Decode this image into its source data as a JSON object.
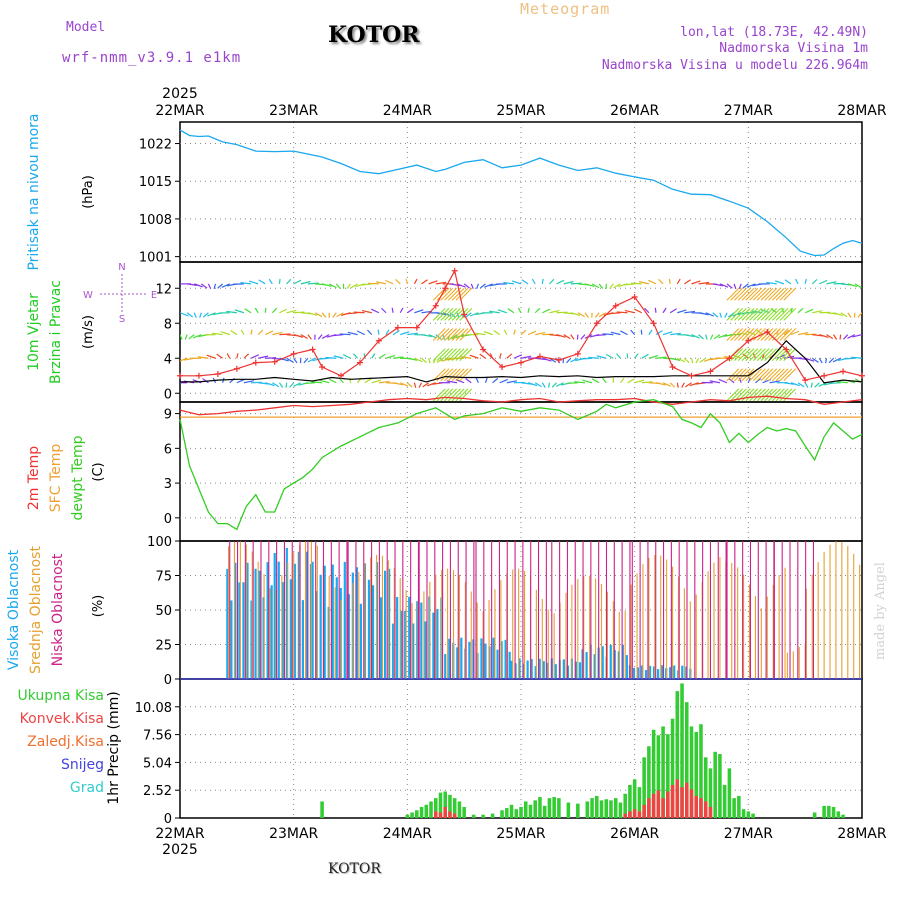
{
  "header": {
    "model_label": "Model",
    "model_name": "wrf-nmm_v3.9.1 e1km",
    "title": "KOTOR",
    "product": "Meteogram",
    "lonlat": "lon,lat (18.73E, 42.49N)",
    "elevation": "Nadmorska Visina 1m",
    "model_elevation": "Nadmorska Visina u modelu 226.964m",
    "footer_city": "KOTOR",
    "credit": "made by Angel"
  },
  "colors": {
    "pressure": "#1aa8ee",
    "wind_label": "#22cc22",
    "temp2m": "#ee3333",
    "sfc_temp": "#f0a030",
    "dewpt": "#33cc22",
    "cloud_high": "#1aa8ee",
    "cloud_mid": "#e6a030",
    "cloud_low": "#cc2288",
    "precip_total": "#33cc33",
    "precip_conv": "#ee4444",
    "precip_frz": "#f07030",
    "precip_snow": "#4444dd",
    "precip_grad": "#33cccc",
    "header_purple": "#9944cc",
    "meteogram_orange": "#f0c080"
  },
  "chart_data": [
    {
      "type": "line",
      "panel": "pressure",
      "title": "",
      "ylabel_name": "Pritisak na nivou mora",
      "ylabel_unit": "(hPa)",
      "yticks": [
        "1022",
        "1015",
        "1008",
        "1001"
      ],
      "ylim": [
        1000,
        1026
      ],
      "xlim": [
        0,
        144
      ],
      "series": [
        {
          "x": [
            0,
            2,
            4,
            6,
            9,
            12,
            16,
            20,
            24,
            30,
            34,
            38,
            42,
            46,
            50,
            54,
            56,
            60,
            64,
            68,
            72,
            76,
            80,
            84,
            88,
            92,
            96,
            100,
            104,
            108,
            112,
            116,
            120,
            124,
            128,
            131,
            134,
            136,
            138,
            140,
            142,
            144
          ],
          "y": [
            1024.5,
            1023.5,
            1023.3,
            1023.4,
            1022.3,
            1021.8,
            1020.6,
            1020.5,
            1020.6,
            1019.5,
            1018.3,
            1016.8,
            1016.4,
            1017.2,
            1018,
            1016.8,
            1017.2,
            1018.5,
            1019,
            1017.5,
            1018,
            1019.3,
            1018,
            1017,
            1017.5,
            1016.5,
            1015.8,
            1015.2,
            1013.5,
            1012.6,
            1012.5,
            1011.3,
            1010,
            1007.5,
            1004.5,
            1002,
            1001.2,
            1001.3,
            1002.5,
            1003.5,
            1004,
            1003.5
          ]
        }
      ]
    },
    {
      "type": "line",
      "panel": "wind",
      "ylabel_name": "10m Vjetar",
      "ylabel_name2": "Brzina i Pravac",
      "ylabel_unit": "(m/s)",
      "direction_key": [
        "N",
        "S",
        "W",
        "E"
      ],
      "yticks": [
        "0",
        "4",
        "8",
        "12"
      ],
      "ylim": [
        -1,
        15
      ],
      "xlim": [
        0,
        144
      ],
      "series": [
        {
          "name": "speed",
          "x": [
            0,
            4,
            8,
            12,
            16,
            20,
            24,
            28,
            32,
            36,
            40,
            44,
            48,
            52,
            56,
            60,
            64,
            68,
            72,
            76,
            80,
            84,
            88,
            92,
            96,
            100,
            104,
            108,
            112,
            116,
            120,
            124,
            128,
            132,
            136,
            140,
            144
          ],
          "y": [
            1.3,
            1.3,
            1.5,
            1.6,
            1.6,
            1.8,
            1.6,
            1.4,
            1.8,
            1.6,
            1.7,
            1.8,
            1.9,
            1.3,
            1.9,
            1.8,
            1.8,
            1.9,
            1.8,
            2,
            1.9,
            2,
            1.8,
            1.9,
            1.9,
            1.9,
            2,
            2,
            2,
            2,
            2,
            3.5,
            6,
            4,
            1.2,
            1.5,
            1.3
          ]
        },
        {
          "name": "gust",
          "x": [
            0,
            4,
            8,
            12,
            16,
            20,
            24,
            28,
            30,
            34,
            38,
            42,
            46,
            50,
            54,
            56,
            58,
            60,
            64,
            68,
            72,
            76,
            80,
            84,
            88,
            92,
            96,
            100,
            104,
            108,
            112,
            116,
            120,
            124,
            128,
            132,
            136,
            140,
            144
          ],
          "y": [
            2,
            2,
            2.2,
            2.8,
            3.5,
            3.6,
            4.5,
            5,
            3,
            2,
            3.5,
            6,
            7.5,
            7.5,
            10,
            12,
            14,
            9,
            5,
            3,
            3.5,
            4.2,
            3.8,
            4.5,
            8,
            10,
            11,
            8,
            3,
            2,
            2.5,
            4,
            6,
            7,
            5,
            1.5,
            2,
            2.5,
            2
          ]
        }
      ]
    },
    {
      "type": "line",
      "panel": "temperature",
      "ylabel_names": [
        "2m Temp",
        "SFC Temp",
        "dewpt Temp"
      ],
      "ylabel_unit": "(C)",
      "yticks": [
        "0",
        "3",
        "6",
        "9"
      ],
      "ylim": [
        -2,
        10
      ],
      "xlim": [
        0,
        144
      ],
      "series": [
        {
          "name": "2m Temp",
          "x": [
            0,
            4,
            8,
            12,
            16,
            20,
            24,
            28,
            32,
            36,
            40,
            44,
            48,
            52,
            56,
            60,
            64,
            68,
            72,
            76,
            80,
            84,
            88,
            92,
            96,
            100,
            104,
            108,
            112,
            116,
            120,
            124,
            128,
            132,
            136,
            140,
            144
          ],
          "y": [
            9.3,
            8.9,
            9,
            9.2,
            9.3,
            9.5,
            9.7,
            9.6,
            9.7,
            9.8,
            10,
            10.2,
            10.3,
            10.2,
            10.4,
            10.3,
            10.1,
            10,
            10.2,
            10.3,
            10,
            10.1,
            10.2,
            10.2,
            10.3,
            10,
            9.8,
            10,
            10.2,
            10.1,
            10.4,
            10.5,
            10.3,
            10.2,
            9.8,
            10,
            10.2
          ]
        },
        {
          "name": "SFC Temp",
          "x": [
            0,
            144
          ],
          "y": [
            8.7,
            8.7
          ]
        },
        {
          "name": "dewpt Temp",
          "x": [
            0,
            2,
            4,
            6,
            8,
            10,
            12,
            14,
            16,
            18,
            20,
            22,
            24,
            26,
            28,
            30,
            34,
            38,
            42,
            46,
            50,
            54,
            56,
            58,
            60,
            64,
            68,
            72,
            76,
            80,
            84,
            88,
            90,
            92,
            96,
            100,
            104,
            106,
            108,
            110,
            112,
            114,
            116,
            118,
            120,
            122,
            124,
            126,
            128,
            130,
            132,
            134,
            136,
            138,
            140,
            142,
            144
          ],
          "y": [
            8.5,
            4.5,
            2.5,
            0.5,
            -0.5,
            -0.5,
            -1,
            1,
            2,
            0.5,
            0.5,
            2.5,
            3,
            3.5,
            4.2,
            5.2,
            6.2,
            7,
            7.8,
            8.2,
            9,
            9.5,
            9,
            8.5,
            8.8,
            9,
            9.5,
            9.2,
            9.5,
            9.3,
            8.5,
            9.2,
            9.8,
            9.5,
            10,
            10.2,
            9.6,
            8.5,
            8.2,
            7.8,
            9,
            8.2,
            6.5,
            7.3,
            6.5,
            7.2,
            7.8,
            7.5,
            7.7,
            7.5,
            6.2,
            5,
            7,
            8.2,
            7.5,
            6.8,
            7.2
          ]
        }
      ]
    },
    {
      "type": "bar",
      "panel": "cloud",
      "ylabel_names": [
        "Visoka Oblacnost",
        "Srednja Oblacnost",
        "Niska Oblacnost"
      ],
      "ylabel_unit": "(%)",
      "yticks": [
        "0",
        "25",
        "50",
        "75",
        "100"
      ],
      "ylim": [
        0,
        100
      ],
      "xlim": [
        0,
        144
      ],
      "series": [
        {
          "name": "Visoka Oblacnost",
          "segments": [
            [
              10,
              20,
              85
            ],
            [
              20,
              28,
              95
            ],
            [
              28,
              45,
              85
            ],
            [
              45,
              56,
              60
            ],
            [
              56,
              70,
              30
            ],
            [
              70,
              85,
              15
            ],
            [
              85,
              95,
              25
            ],
            [
              95,
              108,
              10
            ],
            [
              108,
              144,
              0
            ]
          ]
        },
        {
          "name": "Srednja Oblacnost",
          "segments": [
            [
              10,
              30,
              100
            ],
            [
              30,
              50,
              90
            ],
            [
              50,
              75,
              80
            ],
            [
              75,
              95,
              75
            ],
            [
              95,
              115,
              90
            ],
            [
              115,
              128,
              85
            ],
            [
              128,
              132,
              30
            ],
            [
              132,
              144,
              100
            ]
          ]
        },
        {
          "name": "Niska Oblacnost",
          "segments": [
            [
              10,
              35,
              10
            ],
            [
              35,
              50,
              40
            ],
            [
              50,
              62,
              90
            ],
            [
              62,
              78,
              100
            ],
            [
              78,
              95,
              100
            ],
            [
              95,
              115,
              100
            ],
            [
              115,
              125,
              100
            ],
            [
              125,
              134,
              15
            ],
            [
              134,
              144,
              0
            ]
          ]
        }
      ]
    },
    {
      "type": "bar",
      "panel": "precip",
      "legend": [
        "Ukupna Kisa",
        "Konvek.Kisa",
        "Zaledj.Kisa",
        "Snijeg",
        "Grad"
      ],
      "ylabel_name": "1hr Precip",
      "ylabel_unit": "(mm)",
      "yticks": [
        "0",
        "2.52",
        "5.04",
        "7.56",
        "10.08"
      ],
      "ylim": [
        0,
        12.6
      ],
      "xlim": [
        0,
        144
      ],
      "series": [
        {
          "name": "Ukupna Kisa",
          "x": [
            30,
            48,
            49,
            50,
            51,
            52,
            53,
            54,
            55,
            56,
            57,
            58,
            59,
            60,
            62,
            64,
            66,
            68,
            69,
            70,
            71,
            72,
            73,
            74,
            75,
            76,
            77,
            78,
            79,
            80,
            82,
            84,
            86,
            87,
            88,
            89,
            90,
            91,
            92,
            93,
            94,
            95,
            96,
            97,
            98,
            99,
            100,
            101,
            102,
            103,
            104,
            105,
            106,
            107,
            108,
            109,
            110,
            111,
            112,
            113,
            114,
            115,
            116,
            117,
            118,
            119,
            120,
            121,
            134,
            136,
            137,
            138,
            139,
            140
          ],
          "y": [
            1.5,
            0.3,
            0.5,
            0.7,
            1.0,
            1.2,
            1.5,
            1.8,
            2.3,
            2.4,
            2.1,
            1.8,
            1.5,
            1.0,
            0.3,
            0.3,
            0.4,
            0.7,
            0.9,
            1.2,
            0.8,
            1.0,
            1.5,
            1.2,
            1.6,
            1.9,
            1.1,
            1.8,
            1.9,
            1.8,
            1.4,
            1.3,
            1.5,
            1.8,
            2.0,
            1.6,
            1.7,
            1.6,
            1.8,
            1.4,
            2.2,
            3.0,
            3.5,
            2.8,
            5.5,
            6.5,
            8.0,
            7.5,
            8.3,
            7.6,
            9.0,
            11.5,
            12.2,
            10.5,
            8.3,
            7.8,
            8.5,
            5.5,
            4.5,
            6.0,
            5.8,
            3.0,
            4.5,
            1.8,
            2.0,
            0.8,
            0.6,
            0.4,
            0.5,
            1.1,
            1.1,
            1.0,
            0.6,
            0.3
          ]
        },
        {
          "name": "Konvek.Kisa",
          "x": [
            54,
            55,
            56,
            57,
            58,
            94,
            95,
            96,
            97,
            98,
            99,
            100,
            101,
            102,
            103,
            104,
            105,
            106,
            107,
            108,
            109,
            110,
            111,
            112
          ],
          "y": [
            0.6,
            0.5,
            1.0,
            0.6,
            0.4,
            0.4,
            0.6,
            0.8,
            0.6,
            1.2,
            1.8,
            2.2,
            2.5,
            1.8,
            2.4,
            3.0,
            3.5,
            2.8,
            3.2,
            2.6,
            2.0,
            1.8,
            1.5,
            1.0
          ]
        }
      ]
    },
    {
      "type": "axis",
      "panel": "time",
      "year": "2025",
      "x_ticklabels": [
        "22MAR",
        "23MAR",
        "24MAR",
        "25MAR",
        "26MAR",
        "27MAR",
        "28MAR"
      ],
      "x_tickvalues": [
        0,
        24,
        48,
        72,
        96,
        120,
        144
      ]
    }
  ]
}
